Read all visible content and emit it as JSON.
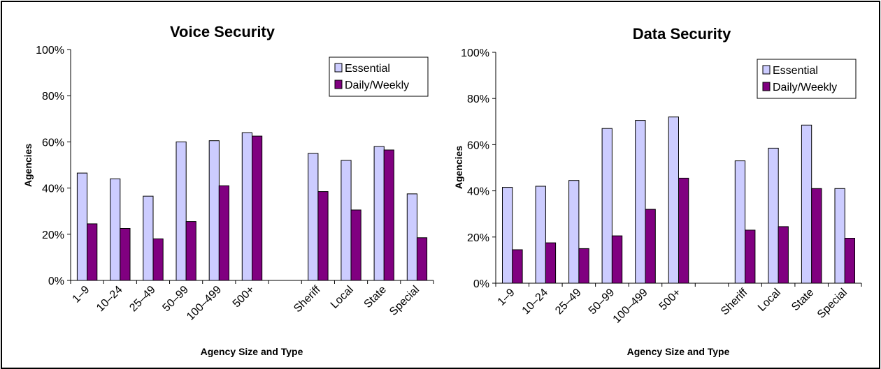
{
  "colors": {
    "essential": "#ccccff",
    "daily": "#800080",
    "border": "#000000"
  },
  "chart_data": [
    {
      "type": "bar",
      "title": "Voice Security",
      "xlabel": "Agency Size and Type",
      "ylabel": "Agencies",
      "ylim": [
        0,
        100
      ],
      "yticks": [
        "0%",
        "20%",
        "40%",
        "60%",
        "80%",
        "100%"
      ],
      "grid": false,
      "legend": "top-right",
      "categories": [
        "1–9",
        "10–24",
        "25–49",
        "50–99",
        "100–499",
        "500+",
        "",
        "Sheriff",
        "Local",
        "State",
        "Special"
      ],
      "series": [
        {
          "name": "Essential",
          "values": [
            46.5,
            44,
            36.5,
            60,
            60.5,
            64,
            null,
            55,
            52,
            58,
            37.5
          ]
        },
        {
          "name": "Daily/Weekly",
          "values": [
            24.5,
            22.5,
            18,
            25.5,
            41,
            62.5,
            null,
            38.5,
            30.5,
            56.5,
            18.5
          ]
        }
      ]
    },
    {
      "type": "bar",
      "title": "Data Security",
      "xlabel": "Agency Size and Type",
      "ylabel": "Agencies",
      "ylim": [
        0,
        100
      ],
      "yticks": [
        "0%",
        "20%",
        "40%",
        "60%",
        "80%",
        "100%"
      ],
      "grid": false,
      "legend": "top-right",
      "categories": [
        "1–9",
        "10–24",
        "25–49",
        "50–99",
        "100–499",
        "500+",
        "",
        "Sheriff",
        "Local",
        "State",
        "Special"
      ],
      "series": [
        {
          "name": "Essential",
          "values": [
            41.5,
            42,
            44.5,
            67,
            70.5,
            72,
            null,
            53,
            58.5,
            68.5,
            41
          ]
        },
        {
          "name": "Daily/Weekly",
          "values": [
            14.5,
            17.5,
            15,
            20.5,
            32,
            45.5,
            null,
            23,
            24.5,
            41,
            19.5
          ]
        }
      ]
    }
  ]
}
